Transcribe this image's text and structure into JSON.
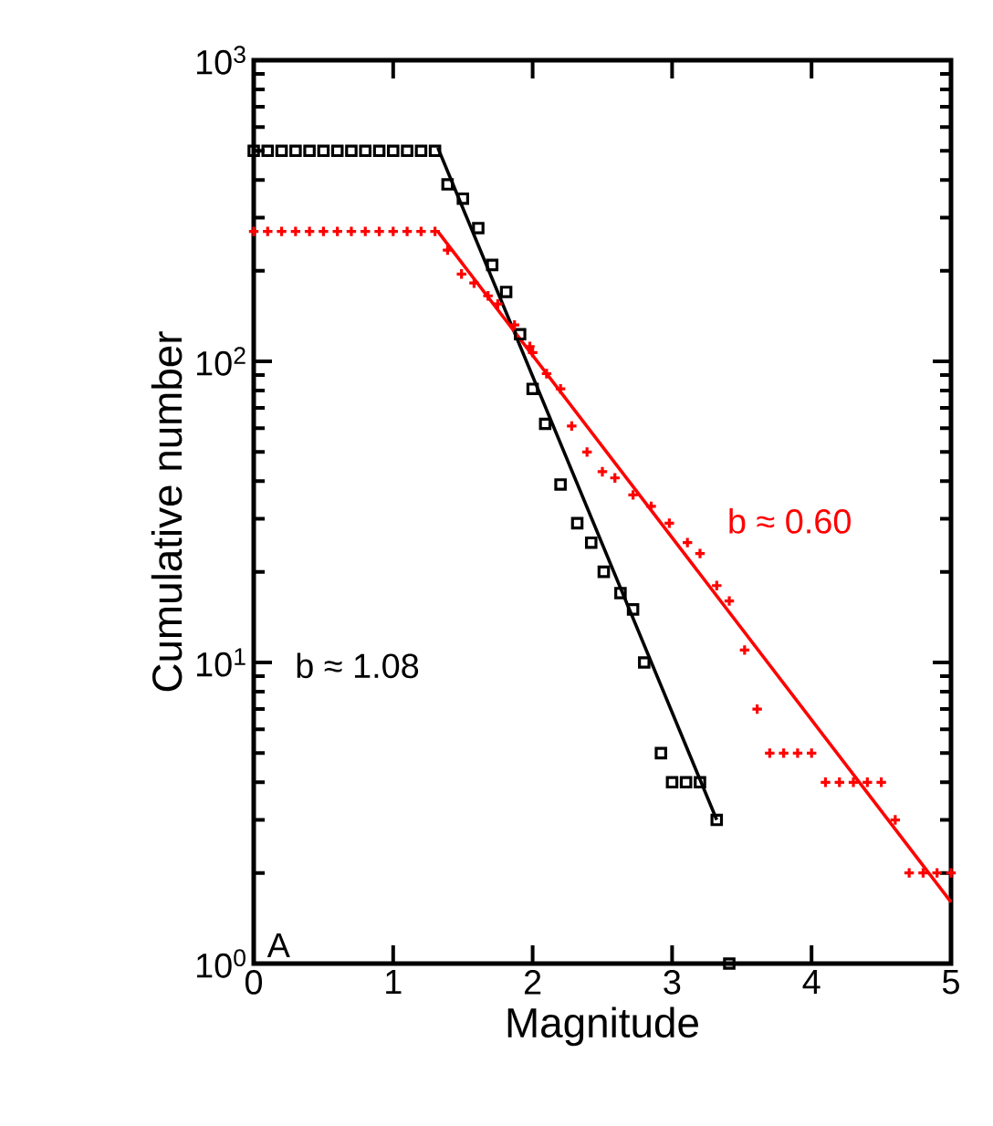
{
  "chart_data": {
    "type": "scatter",
    "xlabel": "Magnitude",
    "ylabel": "Cumulative number",
    "log": "y",
    "xlim": [
      0,
      5
    ],
    "ylim": [
      1,
      1000
    ],
    "xticks": [
      0,
      1,
      2,
      3,
      4,
      5
    ],
    "yticks": [
      {
        "value": 1,
        "label": "10$^{0}$"
      },
      {
        "value": 10,
        "label": "10$^{1}$"
      },
      {
        "value": 100,
        "label": "10$^{2}$"
      },
      {
        "value": 1000,
        "label": "10$^{3}$"
      }
    ],
    "series": [
      {
        "marker": "square",
        "color": "#000000",
        "x": [
          0,
          0.1,
          0.2,
          0.3,
          0.4,
          0.5,
          0.6,
          0.7,
          0.8,
          0.9,
          1.0,
          1.1,
          1.2,
          1.3,
          1.39,
          1.5,
          1.61,
          1.71,
          1.81,
          1.91,
          2.0,
          2.09,
          2.2,
          2.32,
          2.42,
          2.51,
          2.63,
          2.72,
          2.8,
          2.92,
          3.0,
          3.1,
          3.2,
          3.32,
          3.41
        ],
        "values": [
          500,
          500,
          500,
          500,
          500,
          500,
          500,
          500,
          500,
          500,
          500,
          500,
          500,
          500,
          387,
          347,
          277,
          209,
          170,
          123,
          81,
          62,
          39,
          29,
          25,
          20,
          17,
          15,
          10,
          5,
          4,
          4,
          4,
          3,
          1
        ]
      },
      {
        "marker": "cross",
        "color": "#ff0000",
        "x": [
          0,
          0.1,
          0.2,
          0.3,
          0.4,
          0.5,
          0.6,
          0.7,
          0.8,
          0.9,
          1.0,
          1.1,
          1.2,
          1.3,
          1.39,
          1.49,
          1.58,
          1.68,
          1.75,
          1.87,
          1.98,
          2.0,
          2.1,
          2.2,
          2.28,
          2.39,
          2.5,
          2.59,
          2.72,
          2.85,
          2.98,
          3.11,
          3.2,
          3.32,
          3.41,
          3.52,
          3.61,
          3.7,
          3.8,
          3.9,
          4.0,
          4.1,
          4.2,
          4.3,
          4.4,
          4.5,
          4.6,
          4.7,
          4.8,
          4.9,
          5.0
        ],
        "values": [
          270,
          270,
          270,
          270,
          270,
          270,
          270,
          270,
          270,
          270,
          270,
          270,
          270,
          270,
          234,
          195,
          182,
          165,
          155,
          132,
          112,
          107,
          91,
          81,
          61,
          50,
          43,
          41,
          36,
          33,
          29,
          25,
          23,
          18,
          16,
          11,
          7,
          5,
          5,
          5,
          5,
          4,
          4,
          4,
          4,
          4,
          3,
          2,
          2,
          2,
          2
        ]
      },
      {
        "type": "line",
        "marker": "none",
        "line_style": "solid",
        "color": "#000000",
        "x": [
          1.32,
          3.32
        ],
        "values": [
          512,
          3
        ]
      },
      {
        "type": "line",
        "marker": "none",
        "line_style": "solid",
        "color": "#ff0000",
        "x": [
          1.32,
          5.0
        ],
        "values": [
          270,
          1.6
        ]
      }
    ],
    "annotations": [
      "b ≈ 0.60",
      "b ≈ 1.08",
      "A"
    ]
  }
}
